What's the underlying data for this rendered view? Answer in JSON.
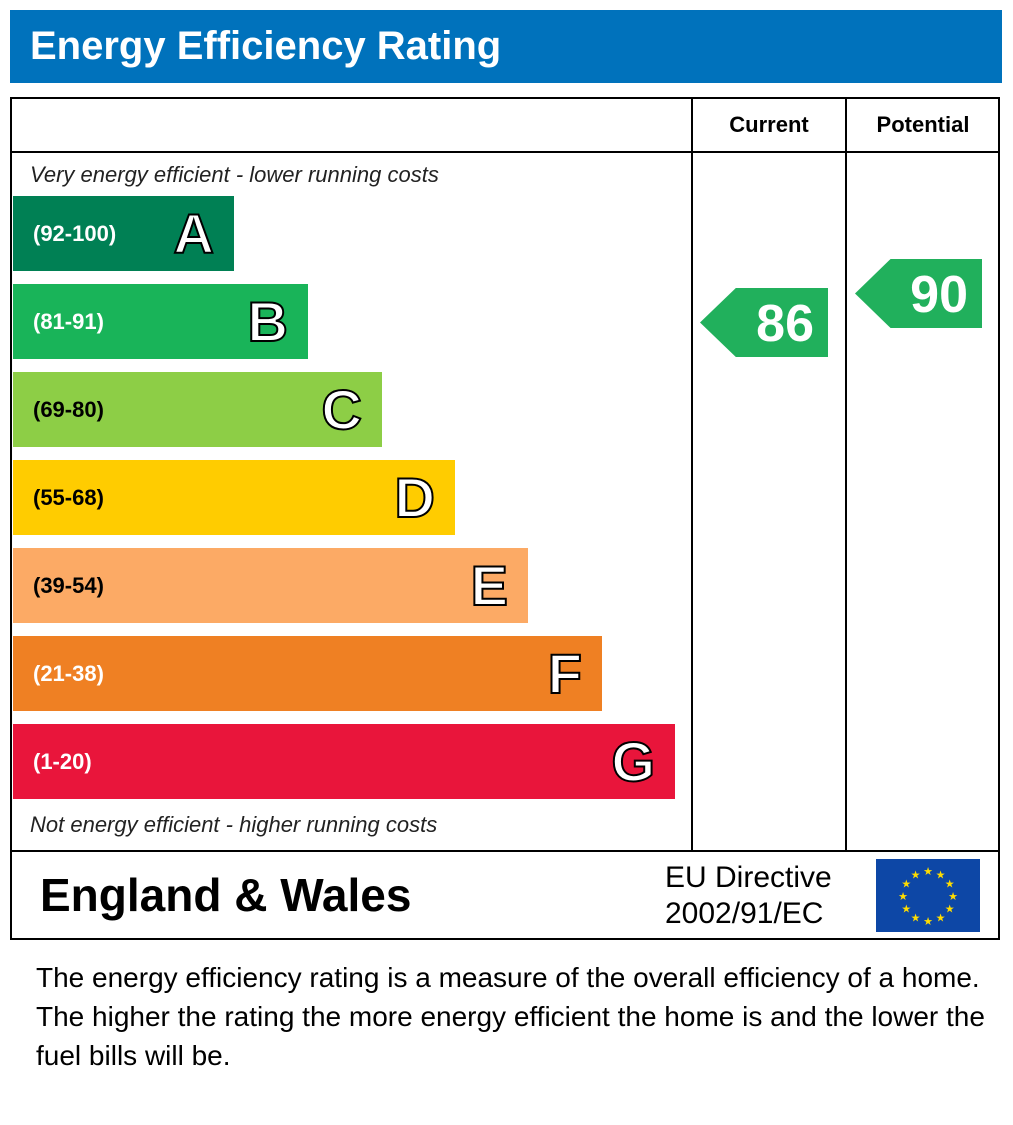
{
  "title": "Energy Efficiency Rating",
  "columns": {
    "current": "Current",
    "potential": "Potential"
  },
  "top_note": "Very energy efficient - lower running costs",
  "bottom_note": "Not energy efficient - higher running costs",
  "chart_data": {
    "type": "bar",
    "bands": [
      {
        "range": "(92-100)",
        "letter": "A",
        "color": "#008054"
      },
      {
        "range": "(81-91)",
        "letter": "B",
        "color": "#19b459"
      },
      {
        "range": "(69-80)",
        "letter": "C",
        "color": "#8dce46"
      },
      {
        "range": "(55-68)",
        "letter": "D",
        "color": "#ffcc00"
      },
      {
        "range": "(39-54)",
        "letter": "E",
        "color": "#fcaa65"
      },
      {
        "range": "(21-38)",
        "letter": "F",
        "color": "#ef8023"
      },
      {
        "range": "(1-20)",
        "letter": "G",
        "color": "#e9153b"
      }
    ],
    "current": 86,
    "potential": 90
  },
  "footer": {
    "country": "England & Wales",
    "directive_line1": "EU Directive",
    "directive_line2": "2002/91/EC"
  },
  "description": "The energy efficiency rating is a measure of the overall efficiency of a home.  The higher the rating the more energy efficient the home is and the lower the fuel bills will be."
}
